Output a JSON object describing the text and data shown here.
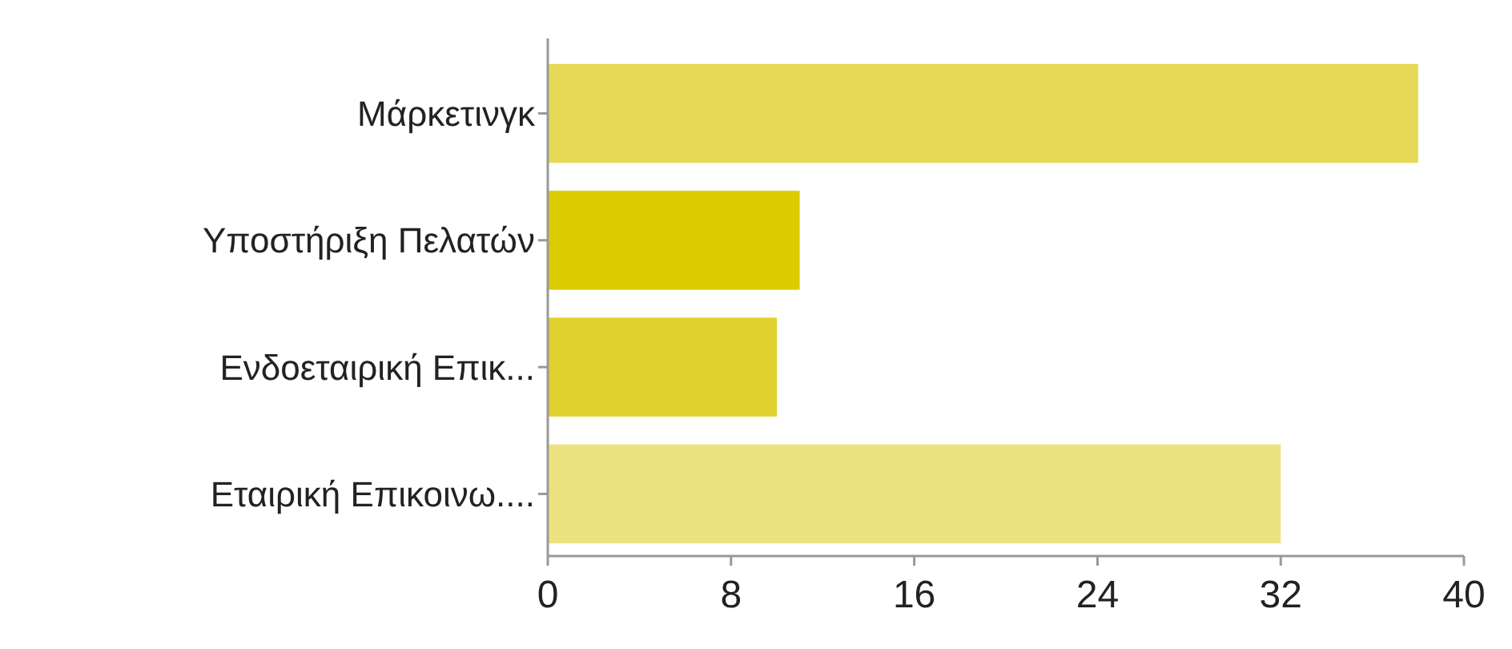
{
  "chart_data": {
    "type": "bar",
    "orientation": "horizontal",
    "categories": [
      "Μάρκετινγκ",
      "Υποστήριξη Πελατών",
      "Ενδοεταιρική Επικ...",
      "Εταιρική Επικοινω...."
    ],
    "values": [
      38,
      11,
      10,
      32
    ],
    "colors": [
      "#e5d955",
      "#dccb00",
      "#e1d12e",
      "#ece27f"
    ],
    "xlim": [
      0,
      40
    ],
    "xticks": [
      0,
      8,
      16,
      24,
      32,
      40
    ]
  }
}
